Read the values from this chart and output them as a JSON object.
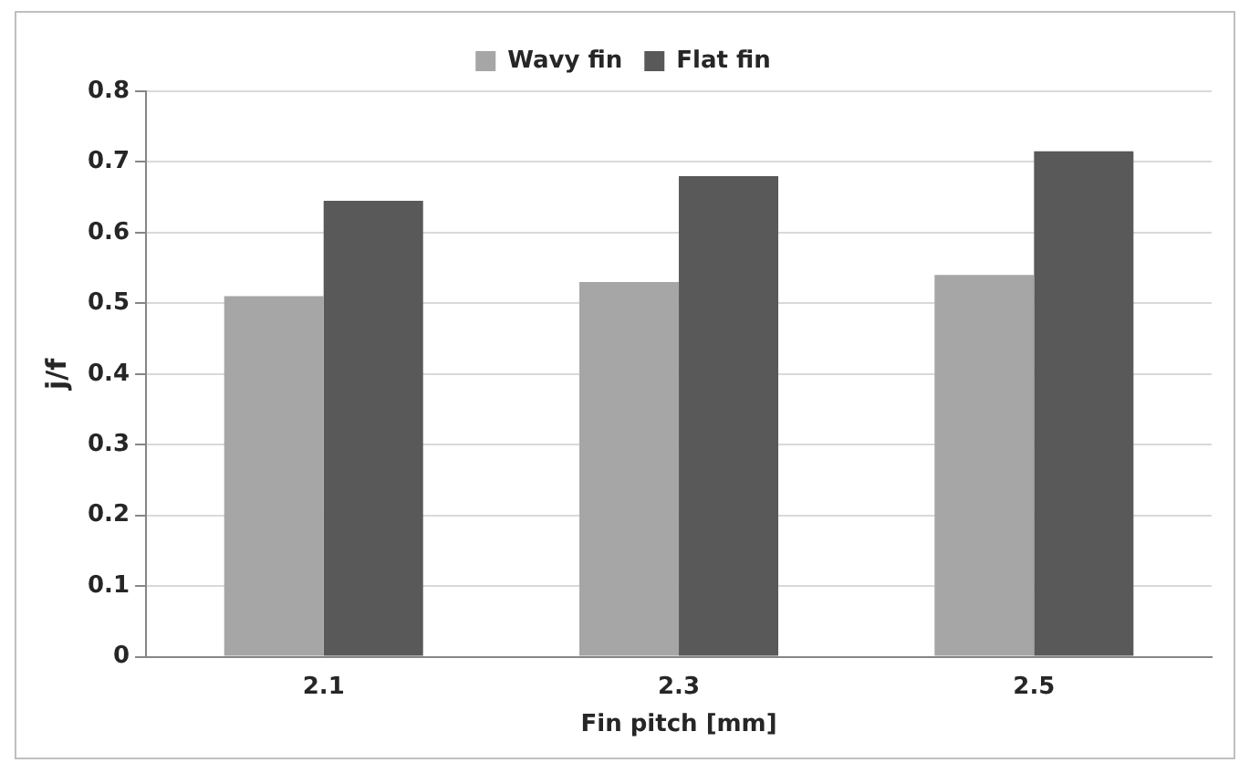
{
  "chart_data": {
    "type": "bar",
    "xlabel": "Fin pitch [mm]",
    "ylabel": "j/f",
    "categories": [
      "2.1",
      "2.3",
      "2.5"
    ],
    "series": [
      {
        "name": "Wavy fin",
        "color": "#a6a6a6",
        "values": [
          0.51,
          0.53,
          0.54
        ]
      },
      {
        "name": "Flat fin",
        "color": "#595959",
        "values": [
          0.645,
          0.68,
          0.715
        ]
      }
    ],
    "ylim": [
      0,
      0.8
    ],
    "yticks": [
      0,
      0.1,
      0.2,
      0.3,
      0.4,
      0.5,
      0.6,
      0.7,
      0.8
    ],
    "grid": "y",
    "legend": "top"
  }
}
